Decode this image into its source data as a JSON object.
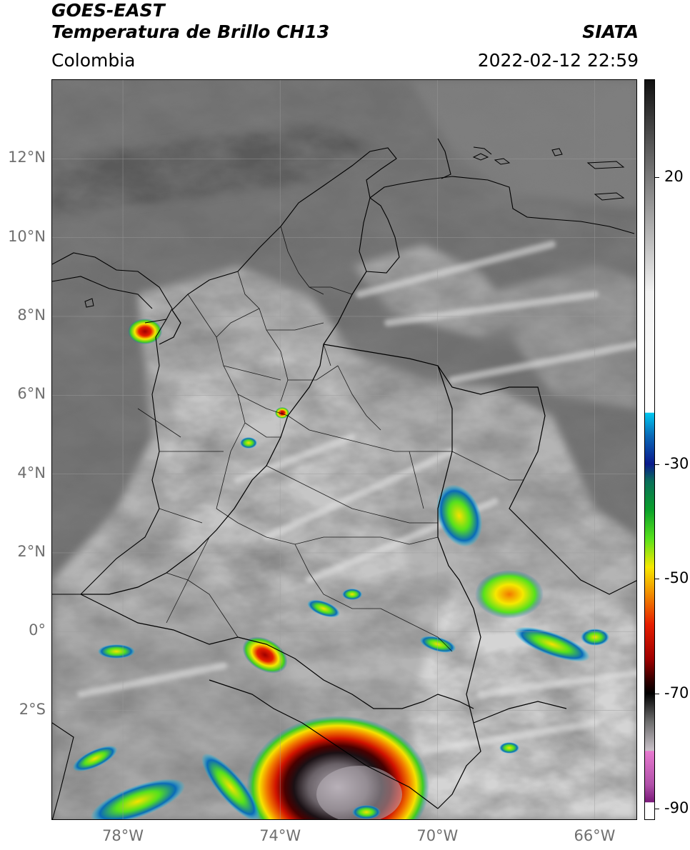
{
  "header": {
    "satellite": "GOES-EAST",
    "product": "Temperatura de Brillo CH13",
    "region": "Colombia",
    "brand": "SIATA",
    "datetime": "2022-02-12 22:59"
  },
  "map": {
    "lat_labels": [
      "12°N",
      "10°N",
      "8°N",
      "6°N",
      "4°N",
      "2°N",
      "0°",
      "2°S"
    ],
    "lon_labels": [
      "78°W",
      "74°W",
      "70°W",
      "66°W"
    ],
    "lat_range": [
      -4.8,
      14.0
    ],
    "lon_range": [
      -79.8,
      -64.9
    ],
    "gridlines": true,
    "background_color": "#6e6e6e",
    "border_color": "#000000"
  },
  "colorbar": {
    "labels": [
      "20",
      "-30",
      "-50",
      "-70",
      "-90"
    ],
    "range": [
      -92,
      37
    ],
    "stops": [
      {
        "v": 37,
        "c": "#111111"
      },
      {
        "v": 20,
        "c": "#7a7a7a"
      },
      {
        "v": 0,
        "c": "#f2f2f2"
      },
      {
        "v": -21,
        "c": "#ffffff"
      },
      {
        "v": -21.1,
        "c": "#00c8f0"
      },
      {
        "v": -25,
        "c": "#0a6ab8"
      },
      {
        "v": -30,
        "c": "#0a1a8c"
      },
      {
        "v": -33,
        "c": "#0a6e5a"
      },
      {
        "v": -38,
        "c": "#0aa02a"
      },
      {
        "v": -43,
        "c": "#56e11c"
      },
      {
        "v": -48,
        "c": "#f6e800"
      },
      {
        "v": -52,
        "c": "#f29a00"
      },
      {
        "v": -58,
        "c": "#e61e00"
      },
      {
        "v": -64,
        "c": "#a00000"
      },
      {
        "v": -68,
        "c": "#2c0000"
      },
      {
        "v": -70,
        "c": "#000000"
      },
      {
        "v": -75,
        "c": "#6e6e6e"
      },
      {
        "v": -80,
        "c": "#c8c0c8"
      },
      {
        "v": -80.1,
        "c": "#e87ad0"
      },
      {
        "v": -86,
        "c": "#b050a8"
      },
      {
        "v": -89,
        "c": "#7a1a7a"
      },
      {
        "v": -89.1,
        "c": "#ffffff"
      },
      {
        "v": -92,
        "c": "#ffffff"
      }
    ]
  }
}
